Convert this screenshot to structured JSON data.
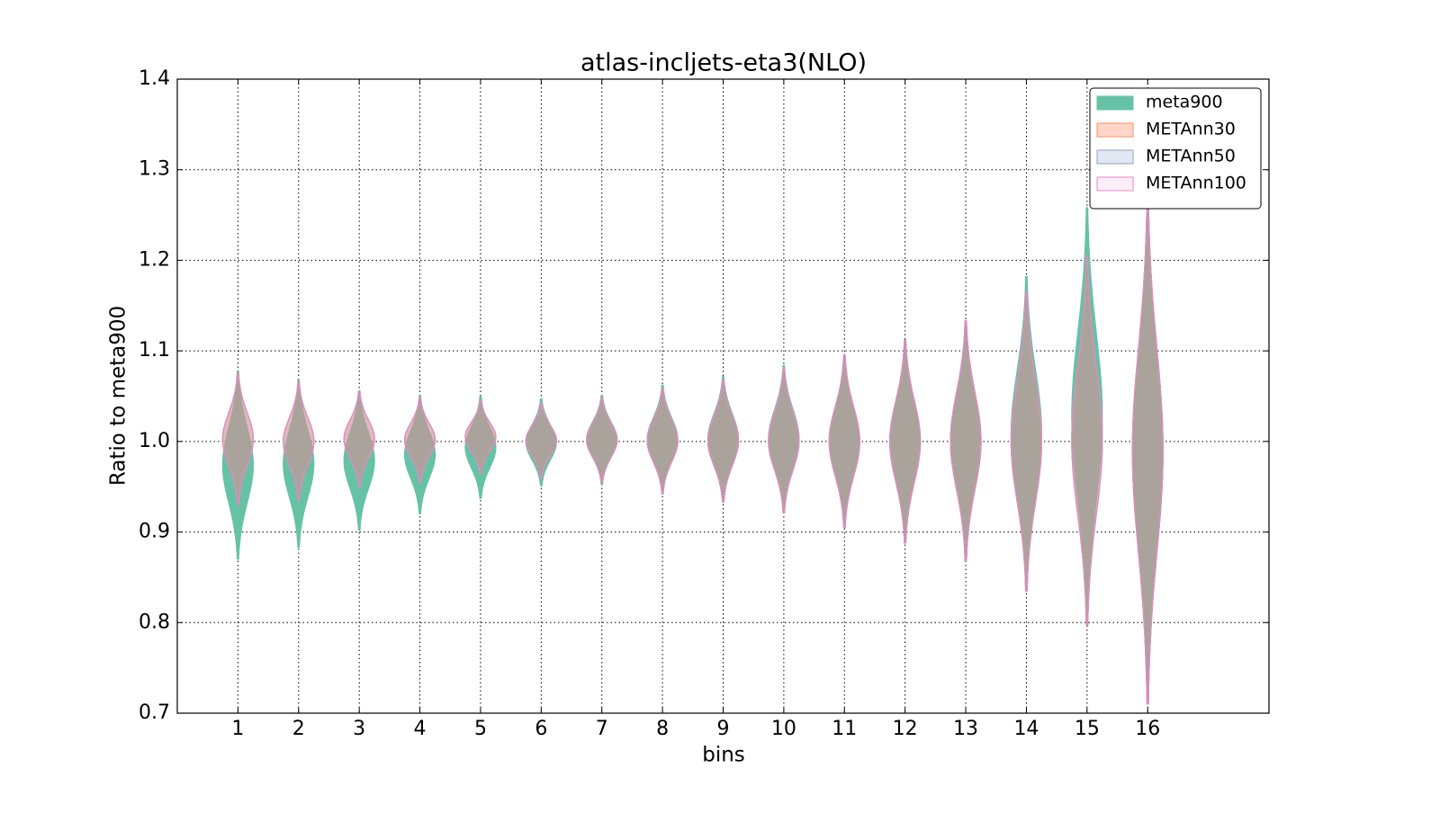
{
  "chart_data": {
    "type": "violin",
    "title": "atlas-incljets-eta3(NLO)",
    "x_label": "bins",
    "y_label": "Ratio to meta900",
    "x": [
      1,
      2,
      3,
      4,
      5,
      6,
      7,
      8,
      9,
      10,
      11,
      12,
      13,
      14,
      15,
      16
    ],
    "xlim": [
      0,
      18
    ],
    "xticks": [
      1,
      2,
      3,
      4,
      5,
      6,
      7,
      8,
      9,
      10,
      11,
      12,
      13,
      14,
      15,
      16
    ],
    "ylim": [
      0.7,
      1.4
    ],
    "yticks": [
      0.7,
      0.8,
      0.9,
      {
        "value": 1,
        "label": "1.0"
      },
      1.1,
      1.2,
      1.3,
      1.4
    ],
    "grid": true,
    "legend_position": "upper right",
    "series": [
      {
        "name": "meta900",
        "color": "#66c2a5",
        "min": [
          0.87,
          0.883,
          0.902,
          0.92,
          0.937,
          0.951,
          0.953,
          0.942,
          0.933,
          0.921,
          0.905,
          0.888,
          0.868,
          0.835,
          0.797,
          0.71
        ],
        "max": [
          1.078,
          1.068,
          1.056,
          1.051,
          1.05,
          1.047,
          1.051,
          1.062,
          1.072,
          1.084,
          1.095,
          1.112,
          1.133,
          1.182,
          1.258,
          1.27
        ]
      },
      {
        "name": "METAnn30",
        "color": "#fc8d62",
        "min": [
          0.93,
          0.935,
          0.95,
          0.955,
          0.965,
          0.96,
          0.955,
          0.943,
          0.933,
          0.921,
          0.905,
          0.888,
          0.868,
          0.835,
          0.797,
          0.71
        ],
        "max": [
          1.075,
          1.065,
          1.055,
          1.048,
          1.045,
          1.042,
          1.048,
          1.058,
          1.068,
          1.08,
          1.095,
          1.112,
          1.133,
          1.165,
          1.205,
          1.27
        ]
      },
      {
        "name": "METAnn50",
        "color": "#8da0cb",
        "min": [
          0.93,
          0.935,
          0.95,
          0.955,
          0.965,
          0.96,
          0.955,
          0.943,
          0.933,
          0.921,
          0.905,
          0.888,
          0.868,
          0.835,
          0.797,
          0.71
        ],
        "max": [
          1.075,
          1.065,
          1.055,
          1.048,
          1.045,
          1.042,
          1.048,
          1.058,
          1.068,
          1.08,
          1.095,
          1.112,
          1.133,
          1.165,
          1.205,
          1.27
        ]
      },
      {
        "name": "METAnn100",
        "color": "#e78ac3",
        "min": [
          0.93,
          0.935,
          0.95,
          0.955,
          0.965,
          0.96,
          0.955,
          0.943,
          0.933,
          0.921,
          0.905,
          0.888,
          0.868,
          0.835,
          0.797,
          0.71
        ],
        "max": [
          1.075,
          1.065,
          1.055,
          1.048,
          1.045,
          1.042,
          1.048,
          1.058,
          1.068,
          1.08,
          1.095,
          1.112,
          1.133,
          1.165,
          1.205,
          1.27
        ]
      }
    ]
  }
}
